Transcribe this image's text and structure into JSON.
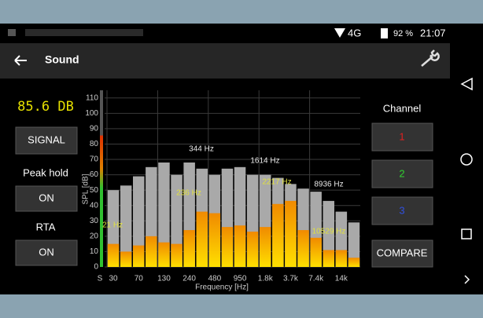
{
  "status_bar": {
    "network": "4G",
    "battery": "92 %",
    "time": "21:07"
  },
  "app_bar": {
    "title": "Sound"
  },
  "left_panel": {
    "signal_button": "SIGNAL",
    "peak_hold_button": "ON",
    "rta_button": "ON"
  },
  "right_panel": {
    "channel_label": "Channel",
    "channels": [
      "1",
      "2",
      "3"
    ],
    "compare_button": "COMPARE"
  },
  "chart_data": {
    "type": "bar",
    "y_label": "SPL [dB]",
    "x_label": "Frequency [Hz]",
    "level": {
      "value": 85.6,
      "label": "85.6 DB"
    },
    "level_axis_label": "S",
    "categories": [
      "30",
      null,
      "70",
      null,
      "130",
      null,
      "240",
      null,
      "480",
      null,
      "950",
      null,
      "1.8k",
      null,
      "3.7k",
      null,
      "7.4k",
      null,
      "14k",
      null
    ],
    "series": [
      {
        "name": "Peak hold",
        "color": "#a9a9a9",
        "values": [
          50,
          53,
          59,
          65,
          68,
          60,
          68,
          64,
          60,
          64,
          65,
          60,
          60,
          58,
          54,
          51,
          49,
          43,
          36,
          29
        ]
      },
      {
        "name": "RTA",
        "color": "#f5a000",
        "values": [
          15,
          10,
          14,
          20,
          16,
          15,
          24,
          36,
          35,
          26,
          27,
          23,
          26,
          41,
          43,
          24,
          19,
          11,
          11,
          6
        ]
      }
    ],
    "peak_annotations": [
      "344 Hz",
      "1614 Hz",
      "8936 Hz"
    ],
    "rta_annotations": [
      "236 Hz",
      "2217 Hz",
      "21 Hz",
      "10529 Hz"
    ],
    "ylim": [
      0,
      115
    ],
    "yticks": [
      0,
      10,
      20,
      30,
      40,
      50,
      60,
      70,
      80,
      90,
      100,
      110
    ],
    "grid": true
  }
}
